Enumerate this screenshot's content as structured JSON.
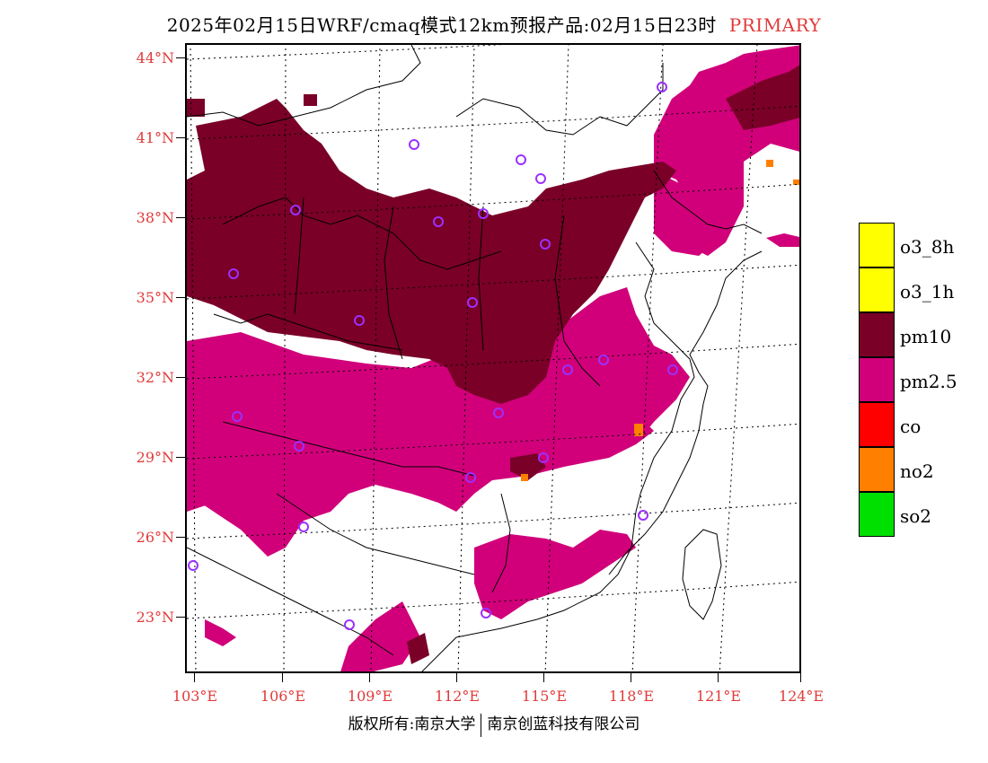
{
  "title": {
    "main": "2025年02月15日WRF/cmaq模式12km预报产品:02月15日23时",
    "tag": "PRIMARY"
  },
  "map": {
    "lat_labels": [
      "44°N",
      "41°N",
      "38°N",
      "35°N",
      "32°N",
      "29°N",
      "26°N",
      "23°N"
    ],
    "lon_labels": [
      "103°E",
      "106°E",
      "109°E",
      "112°E",
      "115°E",
      "118°E",
      "121°E",
      "124°E"
    ],
    "colors": {
      "pm10": "#7a0028",
      "pm2_5": "#d1007a",
      "no2": "#ff7f00",
      "station": "#9b30ff",
      "label": "#e03a3a"
    }
  },
  "legend": [
    {
      "label": "o3_8h",
      "color": "#ffff00"
    },
    {
      "label": "o3_1h",
      "color": "#ffff00"
    },
    {
      "label": "pm10",
      "color": "#7a0028"
    },
    {
      "label": "pm2.5",
      "color": "#d1007a"
    },
    {
      "label": "co",
      "color": "#ff0000"
    },
    {
      "label": "no2",
      "color": "#ff7f00"
    },
    {
      "label": "so2",
      "color": "#00e000"
    }
  ],
  "footer": {
    "left": "版权所有:南京大学",
    "right": "南京创蓝科技有限公司"
  }
}
